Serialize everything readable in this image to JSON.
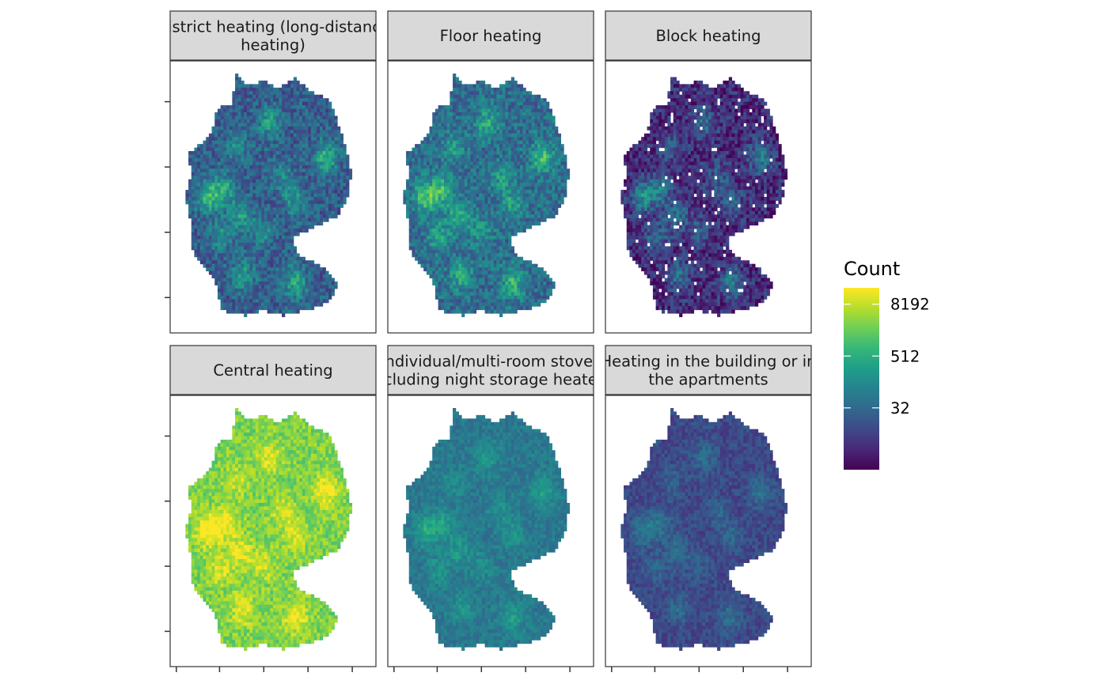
{
  "chart_data": {
    "type": "heatmap",
    "subtype": "faceted binned map (hexagon/grid counts over Germany)",
    "facets": [
      {
        "title": [
          "District heating (long-distance",
          "heating)"
        ],
        "intensity": 0.3,
        "contrast": 1.0
      },
      {
        "title": [
          "Floor heating"
        ],
        "intensity": 0.36,
        "contrast": 1.0
      },
      {
        "title": [
          "Block heating"
        ],
        "intensity": 0.12,
        "contrast": 1.0
      },
      {
        "title": [
          "Central heating"
        ],
        "intensity": 0.8,
        "contrast": 0.7
      },
      {
        "title": [
          "Individual/multi-room stoves",
          "(including night storage heaters)"
        ],
        "intensity": 0.4,
        "contrast": 0.55
      },
      {
        "title": [
          "Heating in the building or in",
          "the apartments"
        ],
        "intensity": 0.22,
        "contrast": 0.55
      }
    ],
    "legend": {
      "title": "Count",
      "scale": "log2",
      "breaks": [
        32,
        512,
        8192
      ],
      "break_positions": [
        0.34,
        0.625,
        0.91
      ],
      "palette": [
        "#440154",
        "#482878",
        "#3e4989",
        "#31688e",
        "#26828e",
        "#1f9e89",
        "#35b779",
        "#6ece58",
        "#b5de2b",
        "#fde725"
      ]
    },
    "grid": false,
    "legend_position": "right"
  }
}
